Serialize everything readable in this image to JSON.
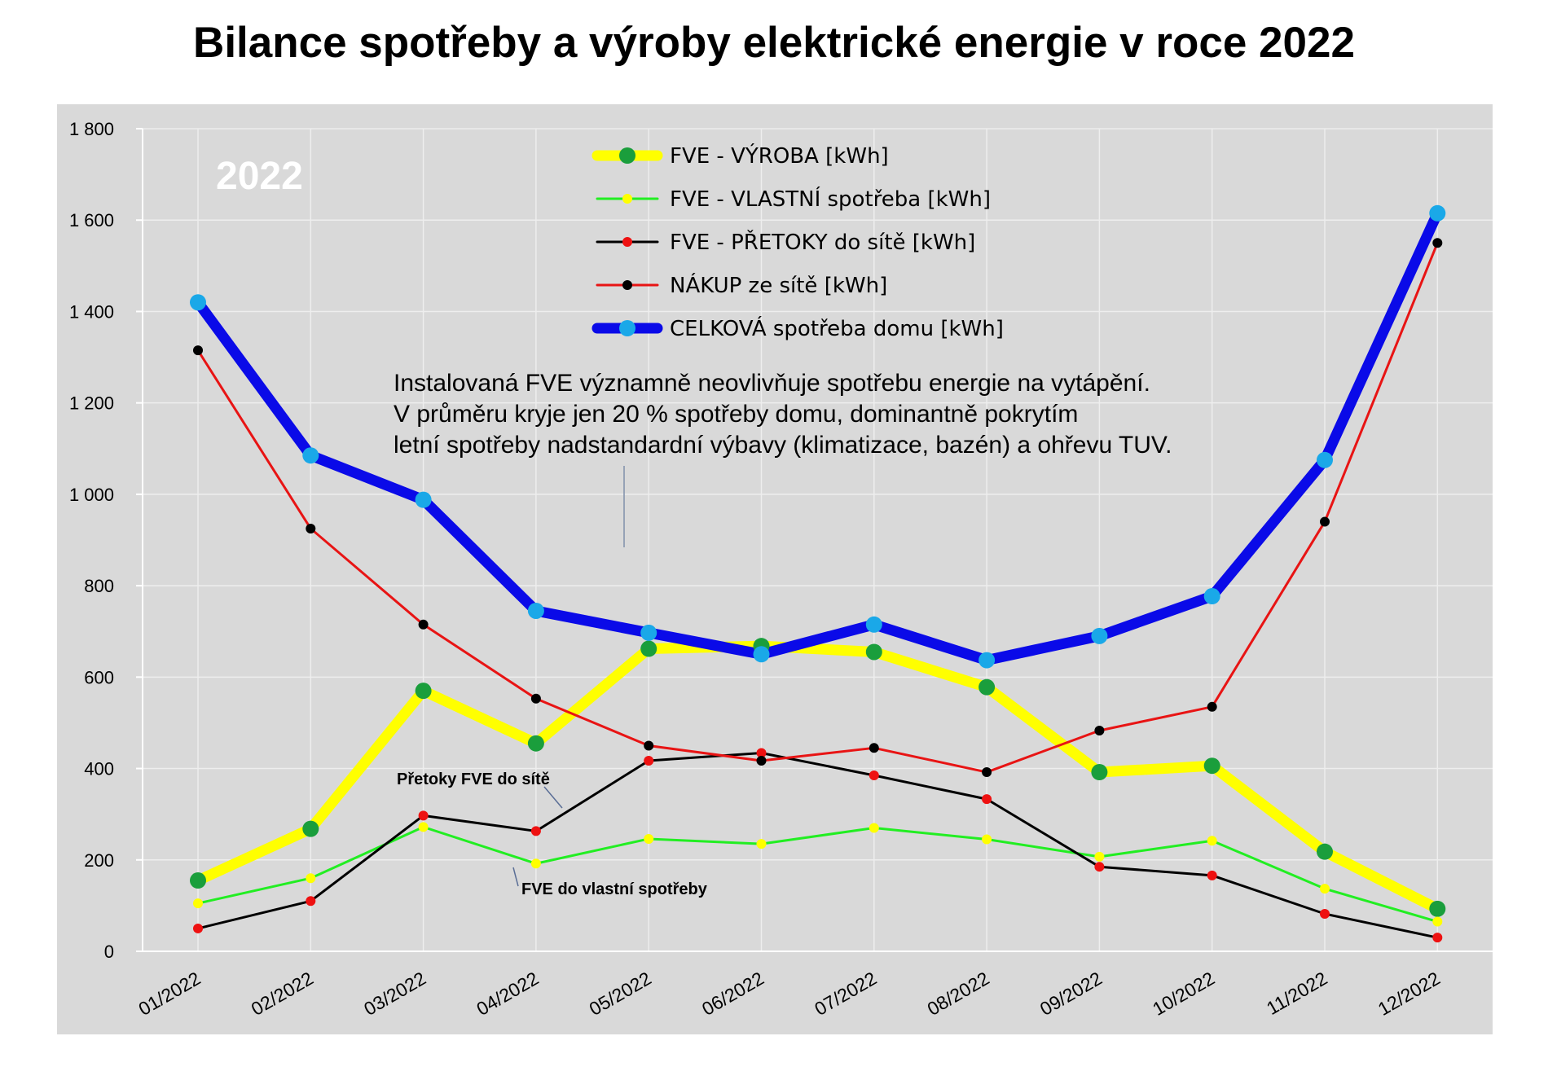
{
  "page": {
    "title": "Bilance spotřeby a výroby elektrické energie v roce 2022"
  },
  "chart_data": {
    "type": "line",
    "title": "Bilance spotřeby a výroby elektrické energie v roce 2022",
    "xlabel": "",
    "ylabel": "",
    "ylim": [
      0,
      1800
    ],
    "yticks": [
      0,
      200,
      400,
      600,
      800,
      1000,
      1200,
      1400,
      1600,
      1800
    ],
    "ytick_labels": [
      "0",
      "200",
      "400",
      "600",
      "800",
      "1 000",
      "1 200",
      "1 400",
      "1 600",
      "1 800"
    ],
    "grid": true,
    "legend_position": "top-center",
    "year_label": "2022",
    "categories": [
      "01/2022",
      "02/2022",
      "03/2022",
      "04/2022",
      "05/2022",
      "06/2022",
      "07/2022",
      "08/2022",
      "09/2022",
      "10/2022",
      "11/2022",
      "12/2022"
    ],
    "series": [
      {
        "name": "FVE - VÝROBA [kWh]",
        "line_color": "#ffff00",
        "marker_color": "#1a9e3c",
        "values": [
          155,
          268,
          570,
          455,
          662,
          668,
          655,
          578,
          392,
          406,
          218,
          93
        ]
      },
      {
        "name": "FVE - VLASTNÍ spotřeba [kWh]",
        "line_color": "#22ee22",
        "marker_color": "#ffff00",
        "values": [
          105,
          160,
          272,
          192,
          246,
          235,
          270,
          245,
          207,
          242,
          137,
          65
        ]
      },
      {
        "name": "FVE - PŘETOKY do sítě [kWh]",
        "line_color": "#000000",
        "marker_color": "#ee1111",
        "values": [
          50,
          110,
          297,
          263,
          417,
          434,
          385,
          333,
          185,
          166,
          82,
          30
        ]
      },
      {
        "name": "NÁKUP ze sítě [kWh]",
        "line_color": "#e81414",
        "marker_color": "#000000",
        "values": [
          1315,
          925,
          715,
          553,
          450,
          417,
          445,
          392,
          483,
          535,
          940,
          1550
        ]
      },
      {
        "name": "CELKOVÁ spotřeba domu [kWh]",
        "line_color": "#0a0ae8",
        "marker_color": "#1aa8e8",
        "values": [
          1420,
          1085,
          988,
          745,
          697,
          650,
          715,
          637,
          690,
          777,
          1075,
          1615
        ]
      }
    ],
    "annotations": {
      "note_lines": [
        "Instalovaná FVE významně neovlivňuje spotřebu energie na vytápění.",
        "V průměru kryje jen 20 % spotřeby domu, dominantně pokrytím",
        "letní spotřeby nadstandardní výbavy (klimatizace, bazén) a ohřevu TUV."
      ],
      "pretoky_label": "Přetoky FVE do sítě",
      "vlastni_label": "FVE do vlastní spotřeby"
    }
  }
}
